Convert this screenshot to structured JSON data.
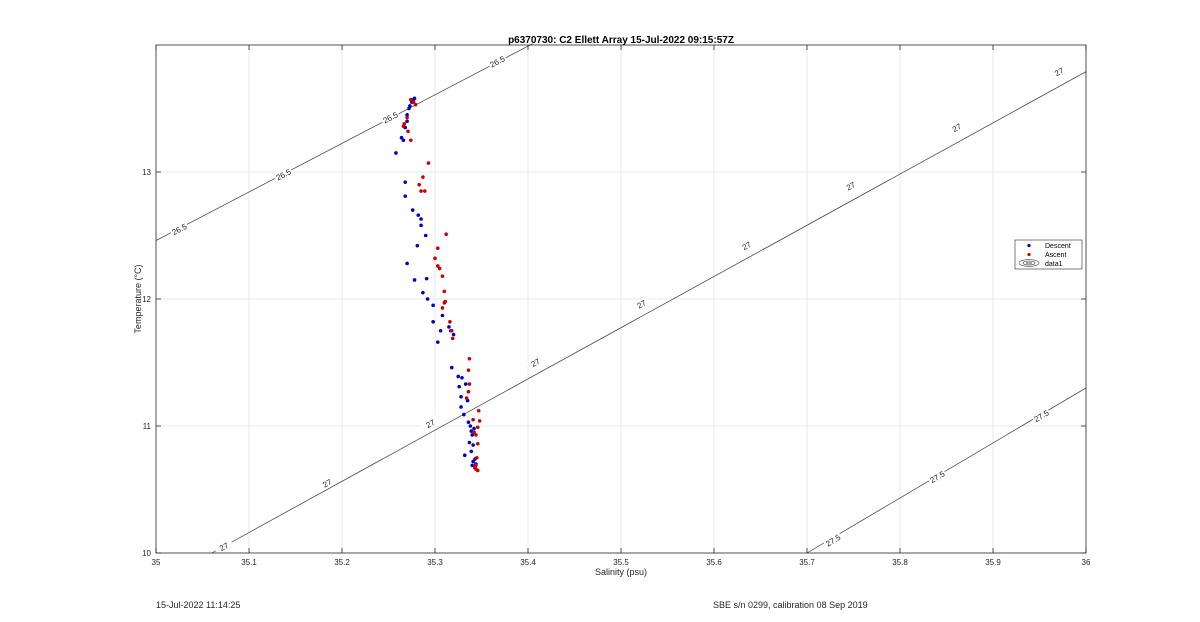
{
  "chart_data": {
    "type": "scatter",
    "title": "p6370730: C2 Ellett Array 15-Jul-2022 09:15:57Z",
    "xlabel": "Salinity (psu)",
    "ylabel": "Temperature (°C)",
    "xlim": [
      35,
      36
    ],
    "ylim": [
      10,
      14
    ],
    "xticks": [
      35,
      35.1,
      35.2,
      35.3,
      35.4,
      35.5,
      35.6,
      35.7,
      35.8,
      35.9,
      36
    ],
    "xtick_labels": [
      "35",
      "35.1",
      "35.2",
      "35.3",
      "35.4",
      "35.5",
      "35.6",
      "35.7",
      "35.8",
      "35.9",
      "36"
    ],
    "yticks": [
      10,
      11,
      12,
      13
    ],
    "ytick_labels": [
      "10",
      "11",
      "12",
      "13"
    ],
    "grid": true,
    "legend_position": "right",
    "legend": [
      "Descent",
      "Ascent",
      "data1"
    ],
    "series": [
      {
        "name": "Descent",
        "color": "#0000cc",
        "x": [
          35.258,
          35.264,
          35.266,
          35.268,
          35.27,
          35.27,
          35.272,
          35.273,
          35.275,
          35.276,
          35.277,
          35.278,
          35.268,
          35.268,
          35.27,
          35.276,
          35.281,
          35.278,
          35.282,
          35.285,
          35.285,
          35.29,
          35.291,
          35.287,
          35.292,
          35.298,
          35.298,
          35.303,
          35.306,
          35.308,
          35.315,
          35.317,
          35.32,
          35.318,
          35.325,
          35.326,
          35.328,
          35.328,
          35.329,
          35.331,
          35.333,
          35.335,
          35.336,
          35.338,
          35.339,
          35.34,
          35.337,
          35.341,
          35.339,
          35.343,
          35.344,
          35.343,
          35.332,
          35.341,
          35.34,
          35.342
        ],
        "y": [
          13.15,
          13.27,
          13.25,
          13.35,
          13.4,
          13.45,
          13.5,
          13.52,
          13.55,
          13.56,
          13.57,
          13.58,
          12.92,
          12.81,
          12.28,
          12.7,
          12.42,
          12.15,
          12.66,
          12.63,
          12.58,
          12.5,
          12.16,
          12.05,
          12.0,
          11.95,
          11.82,
          11.66,
          11.75,
          11.87,
          11.78,
          11.75,
          11.72,
          11.46,
          11.39,
          11.31,
          11.23,
          11.15,
          11.38,
          11.09,
          11.33,
          11.2,
          11.03,
          11.0,
          10.96,
          10.93,
          10.87,
          10.85,
          10.8,
          10.74,
          10.7,
          10.67,
          10.77,
          10.72,
          10.69,
          10.98
        ]
      },
      {
        "name": "Ascent",
        "color": "#cc0000",
        "x": [
          35.274,
          35.277,
          35.279,
          35.27,
          35.266,
          35.267,
          35.271,
          35.274,
          35.293,
          35.287,
          35.285,
          35.289,
          35.283,
          35.312,
          35.303,
          35.3,
          35.303,
          35.305,
          35.308,
          35.31,
          35.311,
          35.308,
          35.31,
          35.316,
          35.318,
          35.319,
          35.337,
          35.336,
          35.337,
          35.336,
          35.334,
          35.347,
          35.348,
          35.346,
          35.341,
          35.342,
          35.344,
          35.346,
          35.345,
          35.344,
          35.343,
          35.344,
          35.346
        ],
        "y": [
          13.57,
          13.55,
          13.53,
          13.43,
          13.36,
          13.38,
          13.32,
          13.25,
          13.07,
          12.96,
          12.85,
          12.85,
          12.9,
          12.51,
          12.4,
          12.32,
          12.26,
          12.24,
          12.18,
          12.06,
          11.98,
          11.93,
          11.97,
          11.82,
          11.75,
          11.69,
          11.53,
          11.44,
          11.33,
          11.27,
          11.22,
          11.12,
          11.04,
          10.99,
          11.05,
          10.95,
          10.93,
          10.86,
          10.75,
          10.69,
          10.68,
          10.66,
          10.65
        ]
      }
    ],
    "contours": [
      {
        "level": "26.5",
        "segments": [
          {
            "x0": 35,
            "y0": 12.46,
            "x1": 35.405,
            "y1": 14.01
          }
        ],
        "labels": [
          {
            "x": 35.025,
            "y": 12.55
          },
          {
            "x": 35.137,
            "y": 12.98
          },
          {
            "x": 35.252,
            "y": 13.43
          },
          {
            "x": 35.367,
            "y": 13.87
          }
        ]
      },
      {
        "level": "27",
        "segments": [
          {
            "x0": 35.06,
            "y0": 10.0,
            "x1": 36.0,
            "y1": 13.79
          }
        ],
        "labels": [
          {
            "x": 35.073,
            "y": 10.05
          },
          {
            "x": 35.184,
            "y": 10.55
          },
          {
            "x": 35.295,
            "y": 11.02
          },
          {
            "x": 35.408,
            "y": 11.5
          },
          {
            "x": 35.522,
            "y": 11.96
          },
          {
            "x": 35.635,
            "y": 12.42
          },
          {
            "x": 35.747,
            "y": 12.89
          },
          {
            "x": 35.861,
            "y": 13.35
          },
          {
            "x": 35.971,
            "y": 13.79
          }
        ]
      },
      {
        "level": "27.5",
        "segments": [
          {
            "x0": 35.7,
            "y0": 10.0,
            "x1": 36.0,
            "y1": 11.3
          }
        ],
        "labels": [
          {
            "x": 35.728,
            "y": 10.1
          },
          {
            "x": 35.84,
            "y": 10.6
          },
          {
            "x": 35.952,
            "y": 11.08
          }
        ]
      }
    ]
  },
  "footer": {
    "left": "15-Jul-2022 11:14:25",
    "right": "SBE s/n 0299, calibration 08 Sep 2019"
  }
}
